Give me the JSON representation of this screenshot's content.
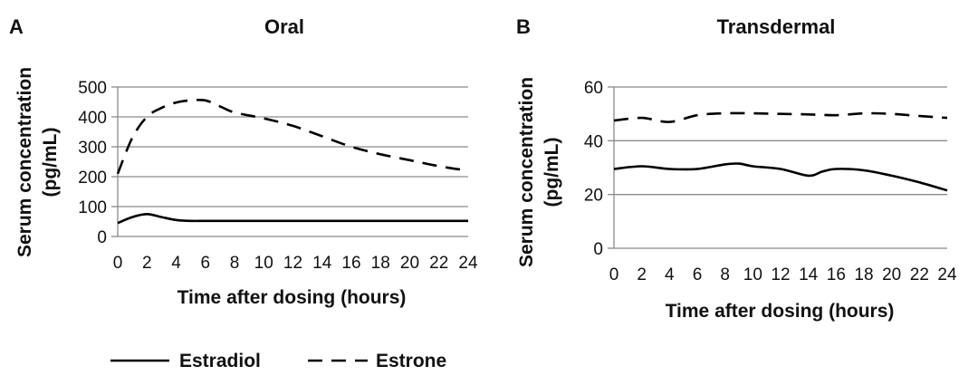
{
  "chart_data": [
    {
      "type": "line",
      "panel": "A",
      "title": "Oral",
      "xlabel": "Time after dosing (hours)",
      "ylabel_line1": "Serum concentration",
      "ylabel_line2": "(pg/mL)",
      "xlim": [
        0,
        24
      ],
      "ylim": [
        0,
        500
      ],
      "xticks": [
        0,
        2,
        4,
        6,
        8,
        10,
        12,
        14,
        16,
        18,
        20,
        22,
        24
      ],
      "yticks": [
        0,
        100,
        200,
        300,
        400,
        500
      ],
      "grid": true,
      "series": [
        {
          "name": "Estradiol",
          "style": "solid",
          "x": [
            0,
            1,
            2,
            3,
            4,
            5,
            6,
            8,
            10,
            12,
            14,
            16,
            18,
            20,
            22,
            24
          ],
          "y": [
            45,
            65,
            75,
            65,
            55,
            52,
            52,
            52,
            52,
            52,
            52,
            52,
            52,
            52,
            52,
            52
          ]
        },
        {
          "name": "Estrone",
          "style": "dashed",
          "x": [
            0,
            1,
            2,
            3,
            4,
            5,
            6,
            7,
            8,
            10,
            12,
            14,
            16,
            18,
            20,
            22,
            24
          ],
          "y": [
            210,
            330,
            400,
            430,
            448,
            455,
            455,
            435,
            415,
            395,
            370,
            335,
            300,
            275,
            255,
            235,
            220
          ]
        }
      ]
    },
    {
      "type": "line",
      "panel": "B",
      "title": "Transdermal",
      "xlabel": "Time after dosing (hours)",
      "ylabel_line1": "Serum concentration",
      "ylabel_line2": "(pg/mL)",
      "xlim": [
        0,
        24
      ],
      "ylim": [
        0,
        60
      ],
      "xticks": [
        0,
        2,
        4,
        6,
        8,
        10,
        12,
        14,
        16,
        18,
        20,
        22,
        24
      ],
      "yticks": [
        0,
        20,
        40,
        60
      ],
      "grid": true,
      "series": [
        {
          "name": "Estradiol",
          "style": "solid",
          "x": [
            0,
            2,
            4,
            6,
            8,
            9,
            10,
            12,
            14,
            15,
            16,
            18,
            20,
            22,
            24
          ],
          "y": [
            29.5,
            30.5,
            29.5,
            29.5,
            31.2,
            31.5,
            30.5,
            29.5,
            27,
            28.5,
            29.5,
            29,
            27,
            24.5,
            21.5
          ]
        },
        {
          "name": "Estrone",
          "style": "dashed",
          "x": [
            0,
            2,
            4,
            6,
            8,
            10,
            12,
            14,
            16,
            18,
            20,
            22,
            24
          ],
          "y": [
            47.5,
            48.5,
            47,
            49.5,
            50.2,
            50.2,
            50,
            49.8,
            49.5,
            50.2,
            50,
            49.2,
            48.5
          ]
        }
      ]
    }
  ],
  "legend": {
    "position": "bottom-left",
    "items": [
      {
        "label": "Estradiol",
        "style": "solid"
      },
      {
        "label": "Estrone",
        "style": "dashed"
      }
    ]
  }
}
